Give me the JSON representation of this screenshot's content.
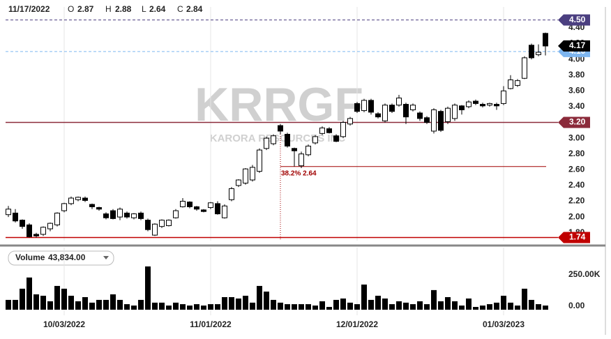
{
  "chart_data": {
    "type": "candlestick",
    "header": {
      "date": "11/17/2022",
      "labels": [
        "O",
        "H",
        "L",
        "C"
      ]
    },
    "watermark": {
      "symbol": "KRRGF",
      "name": "KARORA RESOURCES INC"
    },
    "categories": [
      null,
      null,
      null,
      null,
      null,
      null,
      null,
      null,
      "10/03/2022",
      null,
      null,
      null,
      null,
      null,
      null,
      null,
      null,
      null,
      null,
      null,
      null,
      null,
      null,
      null,
      null,
      null,
      null,
      null,
      null,
      "11/01/2022",
      null,
      null,
      null,
      null,
      null,
      null,
      null,
      null,
      null,
      null,
      null,
      null,
      null,
      null,
      null,
      null,
      null,
      null,
      null,
      null,
      "12/01/2022",
      null,
      null,
      null,
      null,
      null,
      null,
      null,
      null,
      null,
      null,
      null,
      null,
      null,
      null,
      null,
      null,
      null,
      null,
      null,
      null,
      "01/03/2023",
      null,
      null,
      null,
      null,
      null,
      null
    ],
    "open": [
      2.03,
      2.05,
      1.96,
      1.9,
      1.78,
      1.78,
      1.85,
      1.9,
      2.08,
      2.17,
      2.22,
      2.24,
      2.16,
      2.12,
      2.04,
      2.08,
      2.0,
      2.05,
      1.99,
      2.05,
      1.96,
      1.77,
      1.88,
      1.89,
      1.99,
      2.13,
      2.19,
      2.13,
      2.09,
      2.12,
      2.17,
      1.99,
      2.22,
      2.4,
      2.43,
      2.47,
      2.58,
      2.87,
      2.93,
      3.16,
      3.05,
      2.87,
      2.65,
      2.79,
      2.94,
      3.06,
      3.12,
      3.03,
      3.02,
      3.18,
      3.44,
      3.35,
      3.48,
      3.31,
      3.22,
      3.42,
      3.42,
      3.43,
      3.36,
      3.32,
      3.26,
      3.09,
      3.34,
      3.21,
      3.25,
      3.41,
      3.4,
      3.47,
      3.43,
      3.42,
      3.43,
      3.44,
      3.63,
      3.67,
      3.76,
      4.18,
      4.06,
      4.33
    ],
    "high": [
      2.14,
      2.1,
      1.97,
      1.92,
      1.8,
      1.88,
      1.93,
      2.06,
      2.18,
      2.26,
      2.26,
      2.26,
      2.17,
      2.13,
      2.06,
      2.1,
      2.12,
      2.07,
      2.05,
      2.07,
      1.98,
      1.92,
      1.97,
      1.97,
      2.1,
      2.24,
      2.2,
      2.14,
      2.1,
      2.19,
      2.2,
      2.16,
      2.38,
      2.48,
      2.62,
      2.66,
      2.87,
      3.02,
      3.05,
      3.18,
      3.07,
      2.88,
      2.83,
      2.92,
      3.04,
      3.15,
      3.14,
      3.05,
      3.22,
      3.27,
      3.46,
      3.5,
      3.5,
      3.33,
      3.44,
      3.44,
      3.55,
      3.45,
      3.44,
      3.34,
      3.28,
      3.38,
      3.36,
      3.4,
      3.44,
      3.42,
      3.48,
      3.49,
      3.45,
      3.45,
      3.45,
      3.66,
      3.8,
      3.75,
      4.04,
      4.2,
      4.19,
      4.34
    ],
    "low": [
      2.0,
      1.93,
      1.85,
      1.74,
      1.74,
      1.76,
      1.82,
      1.88,
      2.06,
      2.15,
      2.2,
      2.19,
      2.1,
      2.08,
      1.97,
      1.97,
      1.96,
      1.98,
      1.97,
      1.96,
      1.82,
      1.76,
      1.86,
      1.88,
      1.98,
      2.12,
      2.11,
      2.08,
      2.06,
      2.1,
      2.03,
      1.98,
      2.2,
      2.38,
      2.41,
      2.45,
      2.56,
      2.85,
      2.91,
      3.05,
      2.88,
      2.64,
      2.62,
      2.77,
      2.92,
      3.04,
      3.06,
      2.95,
      3.0,
      3.16,
      3.32,
      3.33,
      3.3,
      3.25,
      3.2,
      3.32,
      3.4,
      3.18,
      3.34,
      3.22,
      3.18,
      3.06,
      3.08,
      3.18,
      3.22,
      3.3,
      3.38,
      3.42,
      3.39,
      3.4,
      3.36,
      3.42,
      3.62,
      3.65,
      3.75,
      4.0,
      4.04,
      4.05
    ],
    "close": [
      2.1,
      1.95,
      1.88,
      1.75,
      1.76,
      1.87,
      1.92,
      2.05,
      2.17,
      2.24,
      2.25,
      2.21,
      2.13,
      2.1,
      1.99,
      1.98,
      2.1,
      2.0,
      2.04,
      1.98,
      1.84,
      1.91,
      1.96,
      1.96,
      2.08,
      2.2,
      2.13,
      2.1,
      2.07,
      2.18,
      2.04,
      2.14,
      2.36,
      2.47,
      2.61,
      2.63,
      2.85,
      3.0,
      3.03,
      3.09,
      2.9,
      2.84,
      2.8,
      2.9,
      3.02,
      3.13,
      3.07,
      2.96,
      3.2,
      3.25,
      3.34,
      3.48,
      3.33,
      3.27,
      3.42,
      3.34,
      3.51,
      3.27,
      3.42,
      3.25,
      3.2,
      3.36,
      3.1,
      3.38,
      3.42,
      3.36,
      3.46,
      3.44,
      3.41,
      3.44,
      3.41,
      3.6,
      3.74,
      3.73,
      4.02,
      4.02,
      4.09,
      4.17
    ],
    "up_color": "#ffffff",
    "down_color": "#000000",
    "ylim": [
      1.7,
      4.665
    ],
    "yticks": [
      {
        "value": 1.8,
        "label": "1.80"
      },
      {
        "value": 2.0,
        "label": "2.00"
      },
      {
        "value": 2.2,
        "label": "2.20"
      },
      {
        "value": 2.4,
        "label": "2.40"
      },
      {
        "value": 2.6,
        "label": "2.60"
      },
      {
        "value": 2.8,
        "label": "2.80"
      },
      {
        "value": 3.0,
        "label": "3.00"
      },
      {
        "value": 3.2,
        "label": "3.20"
      },
      {
        "value": 3.4,
        "label": "3.40"
      },
      {
        "value": 3.6,
        "label": "3.60"
      },
      {
        "value": 3.8,
        "label": "3.80"
      },
      {
        "value": 4.0,
        "label": "4.00"
      },
      {
        "value": 4.2,
        "label": "4.20"
      },
      {
        "value": 4.4,
        "label": "4.40"
      }
    ],
    "levels": [
      {
        "value": 4.5,
        "label": "4.50",
        "color": "#4b3f80",
        "dashed": true
      },
      {
        "value": 4.1,
        "label": "4.10",
        "color": "#7eb6f0",
        "dashed": true
      },
      {
        "value": 3.2,
        "label": "3.20",
        "color": "#8b2a3a",
        "dashed": false
      },
      {
        "value": 1.74,
        "label": "1.74",
        "color": "#c00000",
        "dashed": false
      }
    ],
    "last_color": "#000000",
    "fib": {
      "value": 2.64,
      "label": "38.2% 2.64",
      "color": "#a00000"
    },
    "volume_title": "Volume",
    "volume_label": "43,834.00",
    "volume": [
      78000,
      78000,
      167000,
      256000,
      122000,
      111000,
      67000,
      189000,
      167000,
      111000,
      67000,
      100000,
      56000,
      78000,
      78000,
      122000,
      78000,
      44000,
      33000,
      78000,
      344000,
      56000,
      56000,
      33000,
      56000,
      44000,
      33000,
      44000,
      33000,
      44000,
      44000,
      100000,
      100000,
      89000,
      111000,
      56000,
      189000,
      144000,
      78000,
      56000,
      44000,
      43834,
      44000,
      44000,
      33000,
      67000,
      22000,
      78000,
      89000,
      56000,
      44000,
      200000,
      78000,
      111000,
      89000,
      44000,
      67000,
      56000,
      44000,
      67000,
      44000,
      156000,
      67000,
      100000,
      67000,
      33000,
      89000,
      22000,
      33000,
      44000,
      56000,
      111000,
      56000,
      33000,
      167000,
      78000,
      44000,
      33000
    ],
    "volume_color": "#000000",
    "vlim": [
      0,
      355000
    ],
    "vticks": [
      {
        "value": 0,
        "label": "0.00"
      },
      {
        "value": 250000,
        "label": "250.00K"
      }
    ]
  }
}
